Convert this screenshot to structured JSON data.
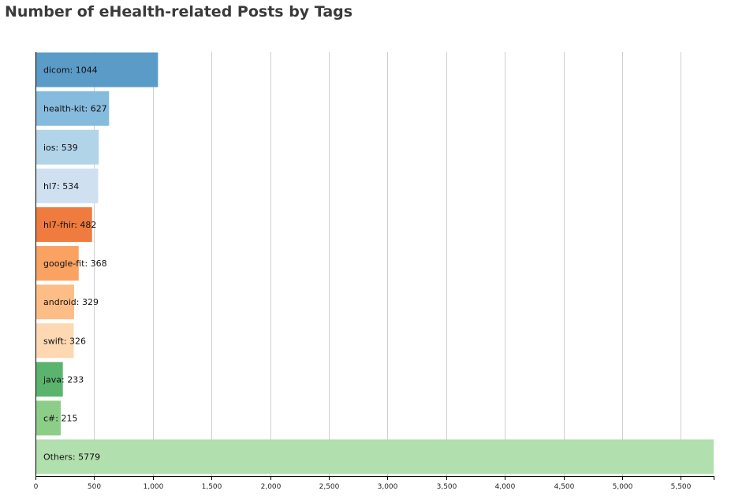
{
  "chart_data": {
    "type": "bar",
    "orientation": "horizontal",
    "title": "Number of eHealth-related Posts by Tags",
    "xlabel": "",
    "ylabel": "",
    "xlim": [
      0,
      5779
    ],
    "grid": true,
    "x_ticks": [
      0,
      500,
      1000,
      1500,
      2000,
      2500,
      3000,
      3500,
      4000,
      4500,
      5000,
      5500
    ],
    "x_tick_labels": [
      "0",
      "500",
      "1,000",
      "1,500",
      "2,000",
      "2,500",
      "3,000",
      "3,500",
      "4,000",
      "4,500",
      "5,000",
      "5,500"
    ],
    "categories": [
      "dicom",
      "health-kit",
      "ios",
      "hl7",
      "hl7-fhir",
      "google-fit",
      "android",
      "swift",
      "java",
      "c#",
      "Others"
    ],
    "values": [
      1044,
      627,
      539,
      534,
      482,
      368,
      329,
      326,
      233,
      215,
      5779
    ],
    "bar_labels": [
      "dicom: 1044",
      "health-kit: 627",
      "ios: 539",
      "hl7: 534",
      "hl7-fhir: 482",
      "google-fit: 368",
      "android: 329",
      "swift: 326",
      "java: 233",
      "c#: 215",
      "Others: 5779"
    ],
    "colors": [
      "#5b9bc8",
      "#85bbdc",
      "#b2d4e8",
      "#cfe0f1",
      "#ef7b3e",
      "#f9a261",
      "#fdbd87",
      "#fdd8b3",
      "#5bb46e",
      "#8cce87",
      "#b2dfae"
    ]
  }
}
